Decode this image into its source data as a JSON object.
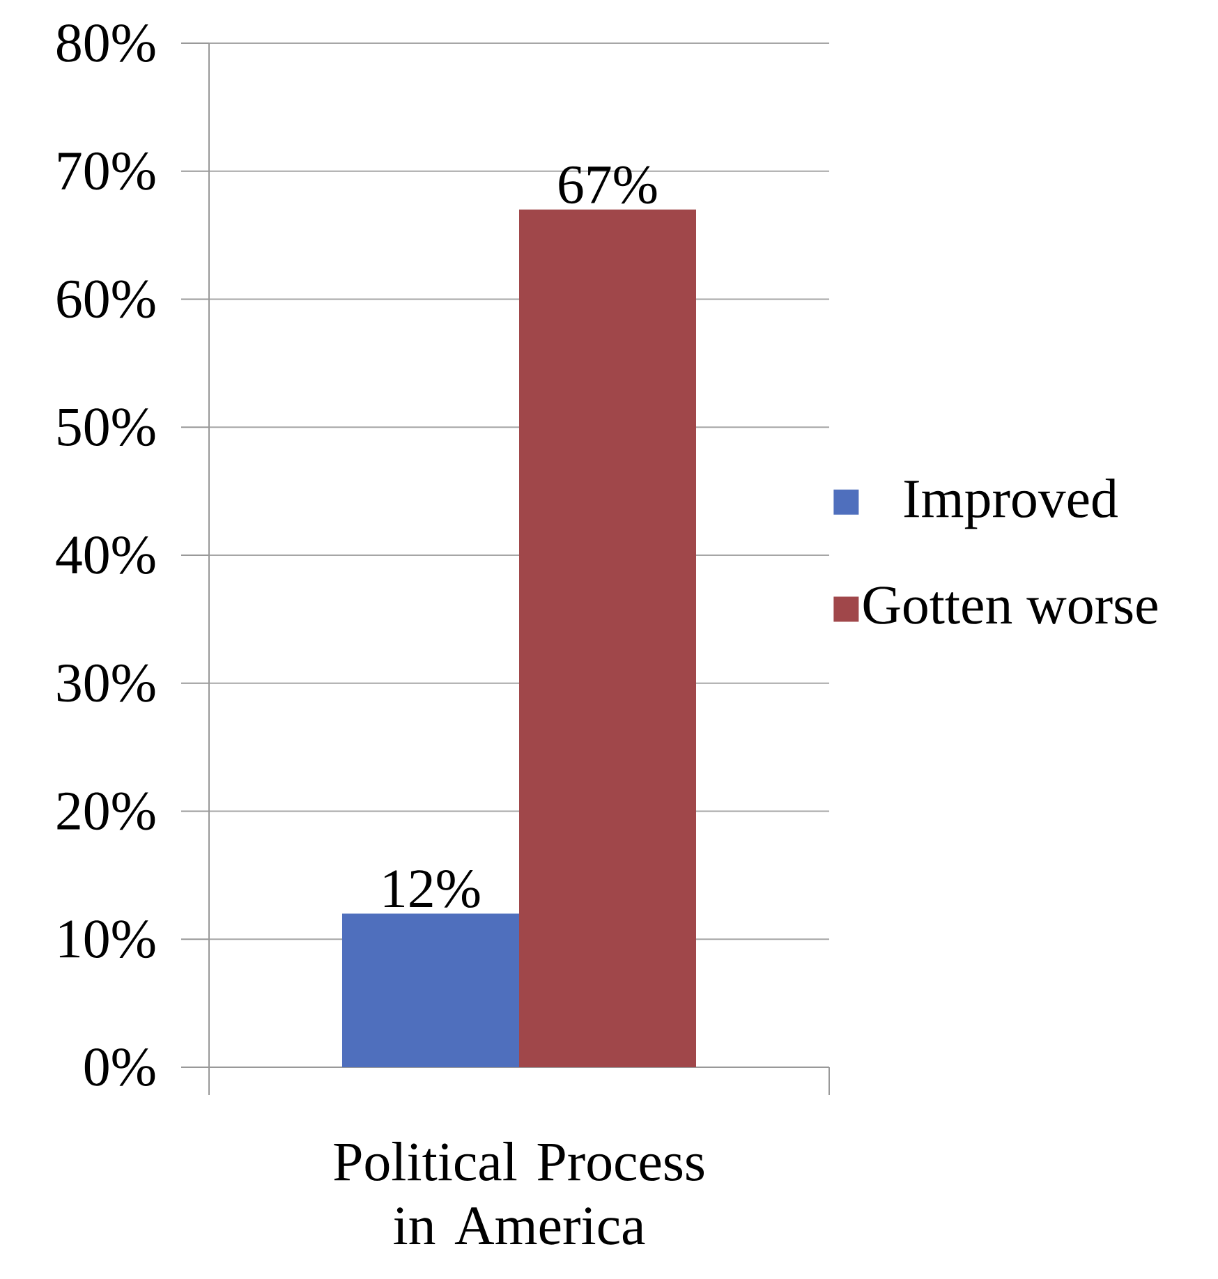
{
  "chart_data": {
    "type": "bar",
    "categories": [
      "Political Process in America"
    ],
    "series": [
      {
        "name": "Improved",
        "color": "#4f6fbd",
        "values": [
          12
        ],
        "value_labels": [
          "12%"
        ]
      },
      {
        "name": "Gotten worse",
        "color": "#a0474a",
        "values": [
          67
        ],
        "value_labels": [
          "67%"
        ]
      }
    ],
    "ylim": [
      0,
      80
    ],
    "yticks": [
      {
        "value": 0,
        "label": "0%"
      },
      {
        "value": 10,
        "label": "10%"
      },
      {
        "value": 20,
        "label": "20%"
      },
      {
        "value": 30,
        "label": "30%"
      },
      {
        "value": 40,
        "label": "40%"
      },
      {
        "value": 50,
        "label": "50%"
      },
      {
        "value": 60,
        "label": "60%"
      },
      {
        "value": 70,
        "label": "70%"
      },
      {
        "value": 80,
        "label": "80%"
      }
    ],
    "grid": "y",
    "legend": "right"
  }
}
